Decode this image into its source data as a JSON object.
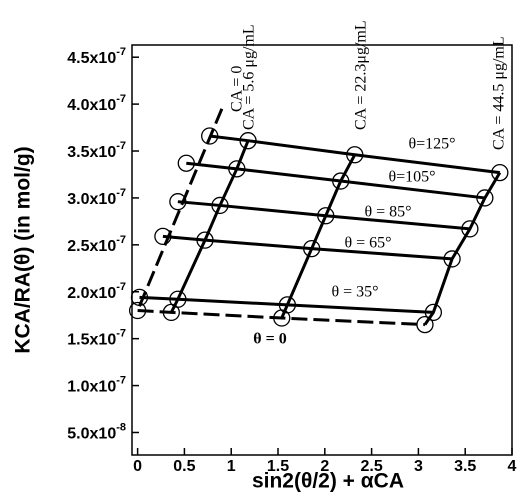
{
  "chart_data": {
    "type": "scatter",
    "x_label": "sin2(θ/2) + αCA",
    "y_label": "KCA/RA(θ)   (in mol/g)",
    "xlim": [
      -0.06,
      4
    ],
    "ylim": [
      2.6e-08,
      4.63e-07
    ],
    "xticks": [
      0,
      0.5,
      1,
      1.5,
      2,
      2.5,
      3,
      3.5,
      4
    ],
    "yticks": [
      {
        "value": 5e-08,
        "label": "5.0x10",
        "exponent": "-8"
      },
      {
        "value": 1e-07,
        "label": "1.0x10",
        "exponent": "-7"
      },
      {
        "value": 1.5e-07,
        "label": "1.5x10",
        "exponent": "-7"
      },
      {
        "value": 2e-07,
        "label": "2.0x10",
        "exponent": "-7"
      },
      {
        "value": 2.5e-07,
        "label": "2.5x10",
        "exponent": "-7"
      },
      {
        "value": 3e-07,
        "label": "3.0x10",
        "exponent": "-7"
      },
      {
        "value": 3.5e-07,
        "label": "3.5x10",
        "exponent": "-7"
      },
      {
        "value": 4e-07,
        "label": "4.0x10",
        "exponent": "-7"
      },
      {
        "value": 4.5e-07,
        "label": "4.5x10",
        "exponent": "-7"
      }
    ],
    "color": "#000000",
    "series": [
      {
        "name": "θ=125°",
        "dashed": false,
        "markers": true,
        "x": [
          0.77,
          1.18,
          2.32,
          3.87
        ],
        "values": [
          3.66e-07,
          3.61e-07,
          3.46e-07,
          3.27e-07
        ]
      },
      {
        "name": "θ=105°",
        "dashed": false,
        "markers": true,
        "x": [
          0.52,
          1.06,
          2.17,
          3.71
        ],
        "values": [
          3.37e-07,
          3.31e-07,
          3.18e-07,
          3e-07
        ]
      },
      {
        "name": "θ = 85°",
        "dashed": false,
        "markers": true,
        "x": [
          0.43,
          0.88,
          2.01,
          3.55
        ],
        "values": [
          2.96e-07,
          2.92e-07,
          2.81e-07,
          2.67e-07
        ]
      },
      {
        "name": "θ = 65°",
        "dashed": false,
        "markers": true,
        "x": [
          0.27,
          0.72,
          1.86,
          3.36
        ],
        "values": [
          2.59e-07,
          2.55e-07,
          2.46e-07,
          2.35e-07
        ]
      },
      {
        "name": "θ = 35°",
        "dashed": false,
        "markers": true,
        "x": [
          0.02,
          0.43,
          1.6,
          3.16
        ],
        "values": [
          1.94e-07,
          1.92e-07,
          1.86e-07,
          1.78e-07
        ]
      },
      {
        "name": "θ = 0",
        "dashed": true,
        "markers": true,
        "x": [
          0,
          0.36,
          1.54,
          3.07
        ],
        "values": [
          1.8e-07,
          1.78e-07,
          1.72e-07,
          1.65e-07
        ]
      },
      {
        "name": "CA = 0",
        "dashed": true,
        "markers": false,
        "x": [
          0.9,
          0
        ],
        "values": [
          3.95e-07,
          1.8e-07
        ]
      },
      {
        "name": "CA = 5.6 μg/mL",
        "dashed": false,
        "markers": false,
        "x": [
          1.18,
          1.06,
          0.88,
          0.72,
          0.43,
          0.36
        ],
        "values": [
          3.61e-07,
          3.31e-07,
          2.92e-07,
          2.55e-07,
          1.92e-07,
          1.78e-07
        ]
      },
      {
        "name": "CA = 22.3μg/mL",
        "dashed": false,
        "markers": false,
        "x": [
          2.32,
          2.17,
          2.01,
          1.86,
          1.6,
          1.54
        ],
        "values": [
          3.46e-07,
          3.18e-07,
          2.81e-07,
          2.46e-07,
          1.86e-07,
          1.72e-07
        ]
      },
      {
        "name": "CA = 44.5 μg/mL",
        "dashed": false,
        "markers": false,
        "x": [
          3.87,
          3.71,
          3.55,
          3.36,
          3.16,
          3.07
        ],
        "values": [
          3.27e-07,
          3e-07,
          2.67e-07,
          2.35e-07,
          1.78e-07,
          1.65e-07
        ]
      }
    ]
  }
}
